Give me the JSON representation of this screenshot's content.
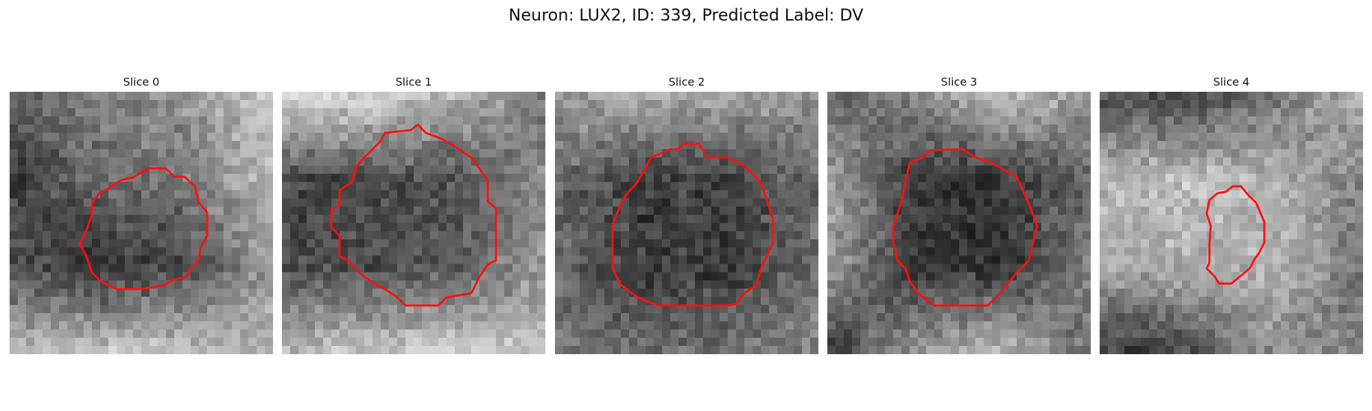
{
  "figure": {
    "title": "Neuron: LUX2, ID: 339, Predicted Label: DV",
    "panels": [
      {
        "title": "Slice 0",
        "base_grid": [
          [
            0.35,
            0.52,
            0.58,
            0.78
          ],
          [
            0.24,
            0.4,
            0.48,
            0.76
          ],
          [
            0.33,
            0.18,
            0.3,
            0.6
          ],
          [
            0.74,
            0.8,
            0.78,
            0.72
          ]
        ],
        "contour_color": "#ff1010"
      },
      {
        "title": "Slice 1",
        "base_grid": [
          [
            0.88,
            0.86,
            0.72,
            0.45
          ],
          [
            0.3,
            0.28,
            0.34,
            0.55
          ],
          [
            0.28,
            0.3,
            0.35,
            0.6
          ],
          [
            0.74,
            0.78,
            0.82,
            0.76
          ]
        ],
        "contour_color": "#ff1010"
      },
      {
        "title": "Slice 2",
        "base_grid": [
          [
            0.62,
            0.7,
            0.66,
            0.58
          ],
          [
            0.42,
            0.26,
            0.25,
            0.44
          ],
          [
            0.4,
            0.24,
            0.23,
            0.42
          ],
          [
            0.48,
            0.42,
            0.46,
            0.55
          ]
        ],
        "contour_color": "#ff1010"
      },
      {
        "title": "Slice 3",
        "base_grid": [
          [
            0.38,
            0.52,
            0.78,
            0.6
          ],
          [
            0.64,
            0.24,
            0.22,
            0.4
          ],
          [
            0.62,
            0.22,
            0.2,
            0.52
          ],
          [
            0.18,
            0.6,
            0.74,
            0.42
          ]
        ],
        "contour_color": "#ff1010"
      },
      {
        "title": "Slice 4",
        "base_grid": [
          [
            0.3,
            0.24,
            0.46,
            0.7
          ],
          [
            0.72,
            0.76,
            0.7,
            0.5
          ],
          [
            0.64,
            0.68,
            0.7,
            0.48
          ],
          [
            0.22,
            0.28,
            0.58,
            0.46
          ]
        ],
        "contour_color": "#ff1010"
      }
    ]
  }
}
